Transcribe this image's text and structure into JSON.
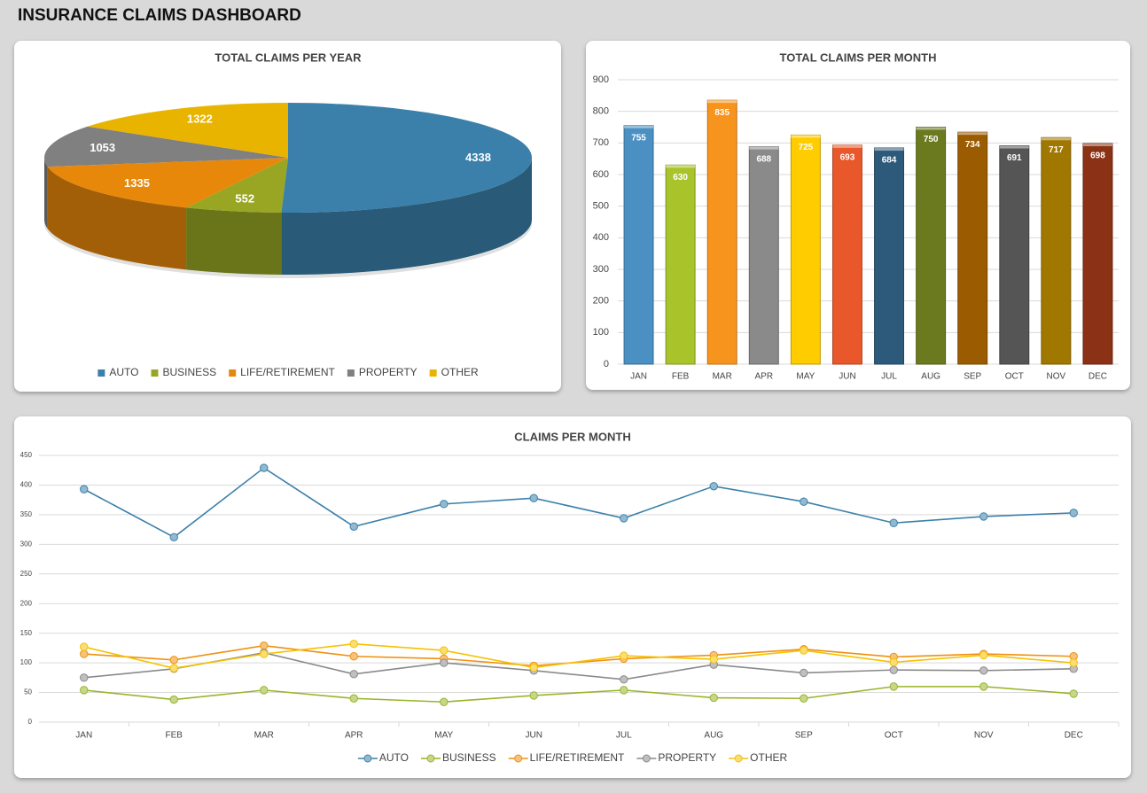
{
  "title": "INSURANCE CLAIMS DASHBOARD",
  "chart_data": [
    {
      "type": "pie",
      "title": "TOTAL CLAIMS PER YEAR",
      "categories": [
        "AUTO",
        "BUSINESS",
        "LIFE/RETIREMENT",
        "PROPERTY",
        "OTHER"
      ],
      "values": [
        4338,
        552,
        1335,
        1053,
        1322
      ],
      "colors": [
        "#3b80aa",
        "#98a624",
        "#e8880a",
        "#808080",
        "#e9b400"
      ],
      "legend": "bottom"
    },
    {
      "type": "bar",
      "title": "TOTAL CLAIMS PER MONTH",
      "categories": [
        "JAN",
        "FEB",
        "MAR",
        "APR",
        "MAY",
        "JUN",
        "JUL",
        "AUG",
        "SEP",
        "OCT",
        "NOV",
        "DEC"
      ],
      "values": [
        755,
        630,
        835,
        688,
        725,
        693,
        684,
        750,
        734,
        691,
        717,
        698
      ],
      "colors": [
        "#4a90c2",
        "#a9c42b",
        "#f7941d",
        "#8a8a8a",
        "#ffcc00",
        "#e8582a",
        "#2d5a7b",
        "#6b7a1f",
        "#9b5b00",
        "#555555",
        "#a07800",
        "#8b3216"
      ],
      "ylim": [
        0,
        900
      ],
      "yticks": [
        0,
        100,
        200,
        300,
        400,
        500,
        600,
        700,
        800,
        900
      ],
      "grid": true
    },
    {
      "type": "line",
      "title": "CLAIMS PER MONTH",
      "categories": [
        "JAN",
        "FEB",
        "MAR",
        "APR",
        "MAY",
        "JUN",
        "JUL",
        "AUG",
        "SEP",
        "OCT",
        "NOV",
        "DEC"
      ],
      "series": [
        {
          "name": "AUTO",
          "color": "#3b80aa",
          "values": [
            393,
            312,
            429,
            330,
            368,
            378,
            344,
            398,
            372,
            336,
            347,
            353
          ]
        },
        {
          "name": "BUSINESS",
          "color": "#98b52a",
          "values": [
            54,
            38,
            54,
            40,
            34,
            45,
            54,
            41,
            40,
            60,
            60,
            48
          ]
        },
        {
          "name": "LIFE/RETIREMENT",
          "color": "#f0900f",
          "values": [
            115,
            105,
            129,
            111,
            107,
            95,
            107,
            113,
            123,
            110,
            115,
            111
          ]
        },
        {
          "name": "PROPERTY",
          "color": "#8a8a8a",
          "values": [
            75,
            90,
            117,
            81,
            100,
            87,
            72,
            97,
            83,
            88,
            87,
            90
          ]
        },
        {
          "name": "OTHER",
          "color": "#f5c200",
          "values": [
            127,
            91,
            115,
            132,
            121,
            92,
            112,
            106,
            121,
            101,
            113,
            100
          ]
        }
      ],
      "ylim": [
        0,
        450
      ],
      "yticks": [
        0,
        50,
        100,
        150,
        200,
        250,
        300,
        350,
        400,
        450
      ],
      "grid": true,
      "legend": "bottom"
    }
  ]
}
